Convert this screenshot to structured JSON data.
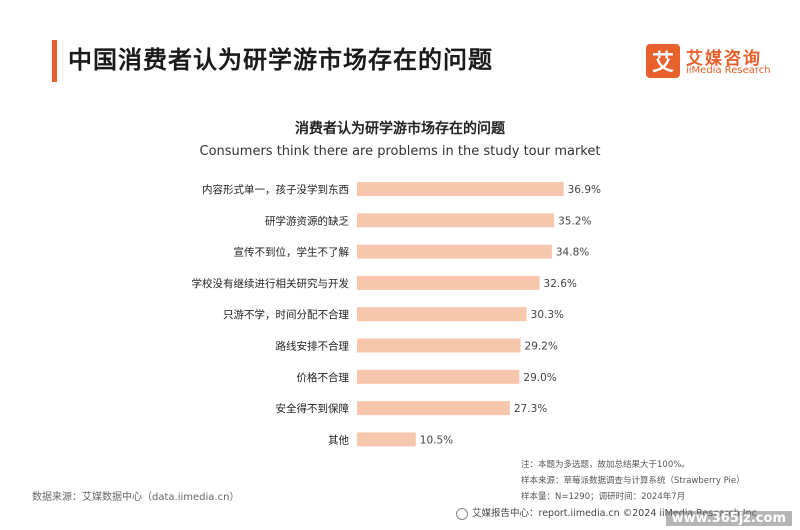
{
  "header": {
    "title": "中国消费者认为研学游市场存在的问题",
    "logo_mark": "艾",
    "logo_cn": "艾媒咨询",
    "logo_en": "iiMedia Research"
  },
  "chart_data": {
    "type": "bar",
    "orientation": "horizontal",
    "title": "消费者认为研学游市场存在的问题",
    "subtitle": "Consumers think there are problems in the study tour market",
    "categories": [
      "内容形式单一，孩子没学到东西",
      "研学游资源的缺乏",
      "宣传不到位，学生不了解",
      "学校没有继续进行相关研究与开发",
      "只游不学，时间分配不合理",
      "路线安排不合理",
      "价格不合理",
      "安全得不到保障",
      "其他"
    ],
    "values": [
      36.9,
      35.2,
      34.8,
      32.6,
      30.3,
      29.2,
      29.0,
      27.3,
      10.5
    ],
    "value_labels": [
      "36.9%",
      "35.2%",
      "34.8%",
      "32.6%",
      "30.3%",
      "29.2%",
      "29.0%",
      "27.3%",
      "10.5%"
    ],
    "unit": "%",
    "xlim": [
      0,
      40
    ],
    "grid": false,
    "legend": "none",
    "bar_color": "#f6c7ad"
  },
  "notes": {
    "note1": "注：本题为多选题，故加总结果大于100%。",
    "note2": "样本来源：草莓派数据调查与计算系统（Strawberry Pie）",
    "note3": "样本量：N=1290；调研时间：2024年7月"
  },
  "source": "数据来源：艾媒数据中心（data.iimedia.cn）",
  "footer": "艾媒报告中心：report.iimedia.cn     ©2024  iiMedia Research  Inc",
  "watermark": "www.365jz.com"
}
